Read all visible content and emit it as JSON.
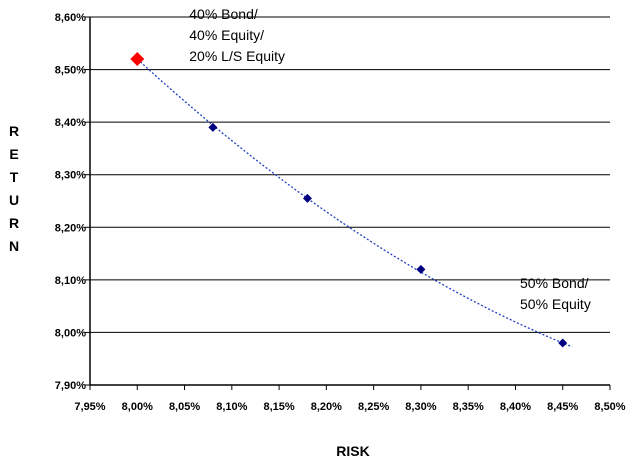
{
  "chart_data": {
    "type": "scatter",
    "title": "",
    "xlabel": "RISK",
    "ylabel": "RETURN",
    "xlim": [
      7.95,
      8.5
    ],
    "ylim": [
      7.9,
      8.6
    ],
    "x_ticks": [
      "7,95%",
      "8,00%",
      "8,05%",
      "8,10%",
      "8,15%",
      "8,20%",
      "8,25%",
      "8,30%",
      "8,35%",
      "8,40%",
      "8,45%",
      "8,50%"
    ],
    "y_ticks": [
      "7,90%",
      "8,00%",
      "8,10%",
      "8,20%",
      "8,30%",
      "8,40%",
      "8,50%",
      "8,60%"
    ],
    "grid": "horizontal",
    "series": [
      {
        "points": [
          {
            "x": 8.0,
            "y": 8.52,
            "highlight": true
          },
          {
            "x": 8.08,
            "y": 8.39
          },
          {
            "x": 8.18,
            "y": 8.255
          },
          {
            "x": 8.3,
            "y": 8.12
          },
          {
            "x": 8.45,
            "y": 7.98
          }
        ],
        "color": "#000080",
        "highlight_color": "#ff0000"
      }
    ],
    "trendline": {
      "style": "dotted",
      "color": "#1f3fbf"
    },
    "annotations": [
      {
        "lines": [
          "40% Bond/",
          "40% Equity/",
          "20% L/S Equity"
        ],
        "anchor": "top-left-point"
      },
      {
        "lines": [
          "50% Bond/",
          "50% Equity"
        ],
        "anchor": "bottom-right-point"
      }
    ]
  }
}
